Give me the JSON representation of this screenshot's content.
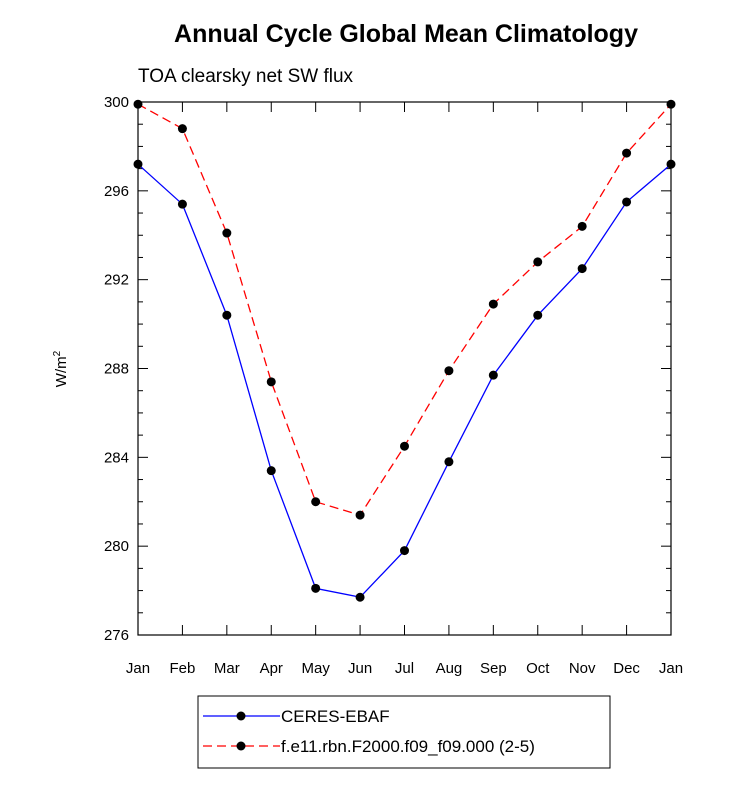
{
  "chart_data": {
    "type": "line",
    "title": "Annual Cycle Global Mean Climatology",
    "subtitle": "TOA clearsky net SW flux",
    "ylabel": "W/m",
    "ylabel_superscript": "2",
    "categories": [
      "Jan",
      "Feb",
      "Mar",
      "Apr",
      "May",
      "Jun",
      "Jul",
      "Aug",
      "Sep",
      "Oct",
      "Nov",
      "Dec",
      "Jan"
    ],
    "ylim": [
      276,
      300
    ],
    "yticks": [
      276,
      280,
      284,
      288,
      292,
      296,
      300
    ],
    "ytick_labels": [
      "276",
      "280",
      "284",
      "288",
      "292",
      "296",
      "300"
    ],
    "minor_ytick_step": 1,
    "grid": false,
    "legend_position": "bottom-center",
    "series": [
      {
        "name": "CERES-EBAF",
        "color": "#0000ff",
        "line_style": "solid",
        "marker": "filled-circle",
        "values": [
          297.2,
          295.4,
          290.4,
          283.4,
          278.1,
          277.7,
          279.8,
          283.8,
          287.7,
          290.4,
          292.5,
          295.5,
          297.2
        ]
      },
      {
        "name": "f.e11.rbn.F2000.f09_f09.000 (2-5)",
        "color": "#ff0000",
        "line_style": "dashed",
        "marker": "filled-circle",
        "values": [
          299.9,
          298.8,
          294.1,
          287.4,
          282.0,
          281.4,
          284.5,
          287.9,
          290.9,
          292.8,
          294.4,
          297.7,
          299.9
        ]
      }
    ]
  }
}
